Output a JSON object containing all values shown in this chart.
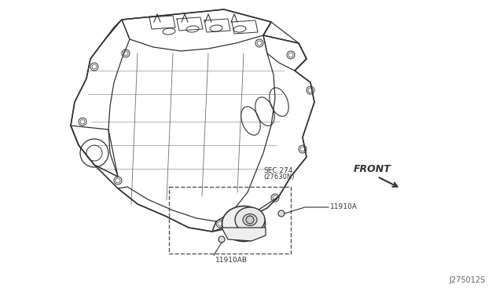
{
  "background_color": "#ffffff",
  "fig_width": 6.4,
  "fig_height": 3.72,
  "dpi": 100,
  "title": "",
  "watermark": "J275012S",
  "labels": {
    "sec274": "SEC.274",
    "sec274_sub": "(27630N)",
    "front": "FRONT",
    "part1": "11910A",
    "part2": "11910AB"
  },
  "label_color": "#333333",
  "line_color": "#333333",
  "dashed_color": "#555555"
}
